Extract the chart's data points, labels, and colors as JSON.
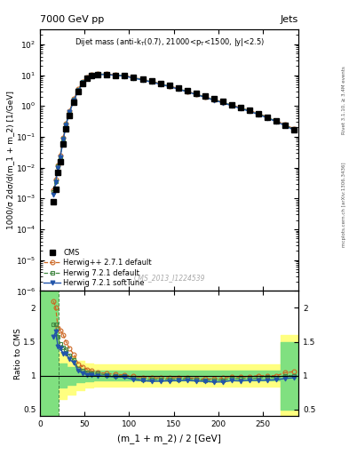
{
  "title_top": "7000 GeV pp",
  "title_right": "Jets",
  "watermark": "CMS_2013_I1224539",
  "ylabel_main": "1000/σ 2dσ/d(m_1 + m_2) [1/GeV]",
  "ylabel_ratio": "Ratio to CMS",
  "xlabel": "(m_1 + m_2) / 2 [GeV]",
  "xlim": [
    0,
    290
  ],
  "ylim_main": [
    1e-06,
    300
  ],
  "ylim_ratio": [
    0.4,
    2.25
  ],
  "x_cms": [
    15,
    17.5,
    20,
    22.5,
    26,
    29,
    33,
    38,
    43,
    48,
    53,
    58,
    65,
    75,
    85,
    95,
    105,
    115,
    125,
    135,
    145,
    155,
    165,
    175,
    185,
    195,
    205,
    215,
    225,
    235,
    245,
    255,
    265,
    275,
    285
  ],
  "y_cms": [
    0.0008,
    0.002,
    0.007,
    0.015,
    0.06,
    0.18,
    0.5,
    1.3,
    3.0,
    5.5,
    8.0,
    9.8,
    10.5,
    10.5,
    10.0,
    9.5,
    8.5,
    7.5,
    6.5,
    5.5,
    4.6,
    3.8,
    3.1,
    2.55,
    2.1,
    1.7,
    1.4,
    1.1,
    0.9,
    0.72,
    0.57,
    0.44,
    0.33,
    0.24,
    0.17
  ],
  "x_hpp": [
    15,
    17.5,
    20,
    22.5,
    26,
    29,
    33,
    38,
    43,
    48,
    53,
    58,
    65,
    75,
    85,
    95,
    105,
    115,
    125,
    135,
    145,
    155,
    165,
    175,
    185,
    195,
    205,
    215,
    225,
    235,
    245,
    255,
    265,
    275,
    285
  ],
  "y_hpp": [
    0.0019,
    0.004,
    0.012,
    0.025,
    0.096,
    0.27,
    0.7,
    1.7,
    3.5,
    6.2,
    8.7,
    10.5,
    11.0,
    10.8,
    10.2,
    9.6,
    8.4,
    7.3,
    6.3,
    5.3,
    4.45,
    3.7,
    3.0,
    2.45,
    2.0,
    1.62,
    1.35,
    1.08,
    0.88,
    0.71,
    0.57,
    0.44,
    0.33,
    0.25,
    0.18
  ],
  "x_h721": [
    15,
    17.5,
    20,
    22.5,
    26,
    29,
    33,
    38,
    43,
    48,
    53,
    58,
    65,
    75,
    85,
    95,
    105,
    115,
    125,
    135,
    145,
    155,
    165,
    175,
    185,
    195,
    205,
    215,
    225,
    235,
    245,
    255,
    265,
    275,
    285
  ],
  "y_h721": [
    0.0016,
    0.0035,
    0.011,
    0.022,
    0.085,
    0.25,
    0.65,
    1.6,
    3.3,
    5.9,
    8.4,
    10.2,
    10.8,
    10.6,
    10.0,
    9.5,
    8.2,
    7.1,
    6.1,
    5.2,
    4.35,
    3.6,
    2.95,
    2.4,
    1.96,
    1.58,
    1.31,
    1.05,
    0.86,
    0.69,
    0.55,
    0.43,
    0.32,
    0.24,
    0.17
  ],
  "x_h721s": [
    15,
    17.5,
    20,
    22.5,
    26,
    29,
    33,
    38,
    43,
    48,
    53,
    58,
    65,
    75,
    85,
    95,
    105,
    115,
    125,
    135,
    145,
    155,
    165,
    175,
    185,
    195,
    205,
    215,
    225,
    235,
    245,
    255,
    265,
    275,
    285
  ],
  "y_h721s": [
    0.0013,
    0.0033,
    0.01,
    0.021,
    0.08,
    0.24,
    0.62,
    1.55,
    3.2,
    5.7,
    8.1,
    9.9,
    10.5,
    10.4,
    9.8,
    9.3,
    8.0,
    6.95,
    5.95,
    5.05,
    4.25,
    3.52,
    2.88,
    2.35,
    1.92,
    1.54,
    1.27,
    1.02,
    0.83,
    0.67,
    0.53,
    0.41,
    0.31,
    0.23,
    0.165
  ],
  "ratio_x": [
    15,
    17.5,
    20,
    22.5,
    26,
    29,
    33,
    38,
    43,
    48,
    53,
    58,
    65,
    75,
    85,
    95,
    105,
    115,
    125,
    135,
    145,
    155,
    165,
    175,
    185,
    195,
    205,
    215,
    225,
    235,
    245,
    255,
    265,
    275,
    285
  ],
  "ratio_hpp": [
    2.1,
    2.0,
    1.71,
    1.67,
    1.6,
    1.5,
    1.4,
    1.31,
    1.17,
    1.13,
    1.09,
    1.07,
    1.05,
    1.03,
    1.02,
    1.01,
    0.99,
    0.973,
    0.969,
    0.964,
    0.967,
    0.974,
    0.968,
    0.961,
    0.952,
    0.953,
    0.964,
    0.982,
    0.978,
    0.986,
    1.0,
    1.0,
    1.0,
    1.042,
    1.06
  ],
  "ratio_h721": [
    1.75,
    1.75,
    1.57,
    1.47,
    1.42,
    1.39,
    1.3,
    1.23,
    1.1,
    1.07,
    1.05,
    1.04,
    1.03,
    1.01,
    1.0,
    1.0,
    0.965,
    0.947,
    0.938,
    0.945,
    0.945,
    0.947,
    0.952,
    0.941,
    0.933,
    0.929,
    0.936,
    0.955,
    0.956,
    0.958,
    0.965,
    0.977,
    0.97,
    1.0,
    1.0
  ],
  "ratio_h721s": [
    1.57,
    1.65,
    1.43,
    1.4,
    1.33,
    1.33,
    1.24,
    1.19,
    1.07,
    1.036,
    1.013,
    1.01,
    1.0,
    0.99,
    0.98,
    0.979,
    0.941,
    0.927,
    0.915,
    0.918,
    0.924,
    0.926,
    0.929,
    0.922,
    0.914,
    0.906,
    0.907,
    0.927,
    0.922,
    0.931,
    0.93,
    0.932,
    0.94,
    0.958,
    0.97
  ],
  "band_x": [
    0,
    10,
    20,
    30,
    40,
    50,
    60,
    70,
    80,
    90,
    100,
    110,
    120,
    130,
    140,
    150,
    160,
    170,
    180,
    190,
    200,
    210,
    220,
    230,
    240,
    250,
    260,
    270,
    280,
    290
  ],
  "band_green_lo": [
    0.4,
    0.4,
    0.82,
    0.87,
    0.9,
    0.92,
    0.93,
    0.93,
    0.93,
    0.93,
    0.93,
    0.93,
    0.93,
    0.93,
    0.93,
    0.93,
    0.93,
    0.93,
    0.93,
    0.93,
    0.93,
    0.93,
    0.93,
    0.93,
    0.93,
    0.93,
    0.93,
    0.5,
    0.5,
    0.5
  ],
  "band_green_hi": [
    2.25,
    2.25,
    1.18,
    1.13,
    1.1,
    1.08,
    1.07,
    1.07,
    1.07,
    1.07,
    1.07,
    1.07,
    1.07,
    1.07,
    1.07,
    1.07,
    1.07,
    1.07,
    1.07,
    1.07,
    1.07,
    1.07,
    1.07,
    1.07,
    1.07,
    1.07,
    1.07,
    1.5,
    1.5,
    1.5
  ],
  "band_yellow_lo": [
    0.4,
    0.4,
    0.65,
    0.72,
    0.78,
    0.82,
    0.84,
    0.84,
    0.84,
    0.84,
    0.84,
    0.84,
    0.84,
    0.84,
    0.84,
    0.84,
    0.84,
    0.84,
    0.84,
    0.84,
    0.84,
    0.84,
    0.84,
    0.84,
    0.84,
    0.84,
    0.84,
    0.4,
    0.4,
    0.4
  ],
  "band_yellow_hi": [
    2.25,
    2.25,
    1.35,
    1.28,
    1.22,
    1.18,
    1.16,
    1.16,
    1.16,
    1.16,
    1.16,
    1.16,
    1.16,
    1.16,
    1.16,
    1.16,
    1.16,
    1.16,
    1.16,
    1.16,
    1.16,
    1.16,
    1.16,
    1.16,
    1.16,
    1.16,
    1.16,
    1.6,
    1.6,
    1.6
  ],
  "color_cms": "#000000",
  "color_hpp": "#cc6622",
  "color_h721": "#448844",
  "color_h721s": "#2255aa",
  "dashed_x": 21,
  "rivet_label": "Rivet 3.1.10, ≥ 3.4M events",
  "mcplots_label": "mcplots.cern.ch [arXiv:1306.3436]"
}
